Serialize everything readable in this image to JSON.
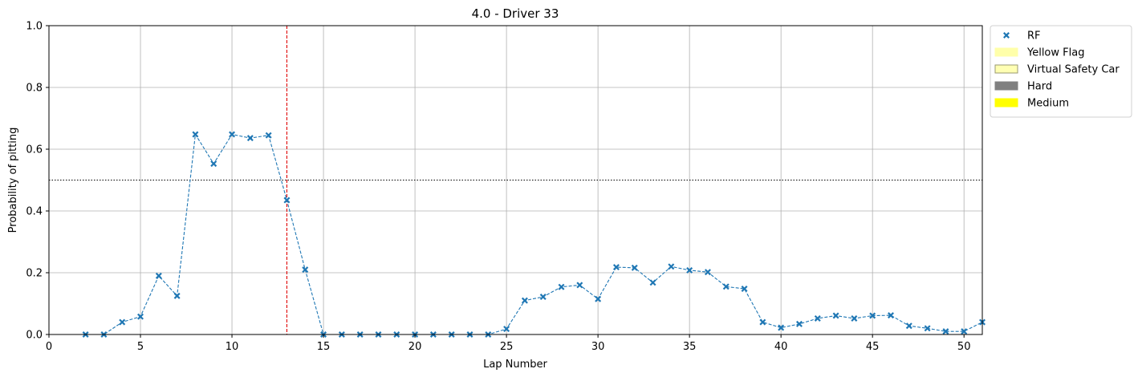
{
  "chart_data": {
    "type": "line",
    "title": "4.0 - Driver 33",
    "xlabel": "Lap Number",
    "ylabel": "Probability of pitting",
    "xlim": [
      0,
      51
    ],
    "ylim": [
      0,
      1
    ],
    "xticks": [
      0,
      5,
      10,
      15,
      20,
      25,
      30,
      35,
      40,
      45,
      50
    ],
    "yticks": [
      0.0,
      0.2,
      0.4,
      0.6,
      0.8,
      1.0
    ],
    "ytick_labels": [
      "0.0",
      "0.2",
      "0.4",
      "0.6",
      "0.8",
      "1.0"
    ],
    "grid": true,
    "threshold": 0.5,
    "pit_lap": 13,
    "legend_position": "outside-top-right",
    "series": [
      {
        "name": "RF",
        "color": "#1f77b4",
        "marker": "x",
        "linestyle": "dashed",
        "x": [
          2,
          3,
          4,
          5,
          6,
          7,
          8,
          9,
          10,
          11,
          12,
          13,
          14,
          15,
          16,
          17,
          18,
          19,
          20,
          21,
          22,
          23,
          24,
          25,
          26,
          27,
          28,
          29,
          30,
          31,
          32,
          33,
          34,
          35,
          36,
          37,
          38,
          39,
          40,
          41,
          42,
          43,
          44,
          45,
          46,
          47,
          48,
          49,
          50,
          51
        ],
        "y": [
          0.0,
          0.0,
          0.04,
          0.058,
          0.19,
          0.125,
          0.648,
          0.553,
          0.648,
          0.636,
          0.645,
          0.435,
          0.21,
          0.0,
          0.0,
          0.0,
          0.0,
          0.0,
          0.0,
          0.0,
          0.0,
          0.0,
          0.0,
          0.018,
          0.11,
          0.122,
          0.154,
          0.16,
          0.115,
          0.218,
          0.216,
          0.168,
          0.22,
          0.208,
          0.202,
          0.155,
          0.148,
          0.04,
          0.022,
          0.034,
          0.052,
          0.061,
          0.052,
          0.061,
          0.062,
          0.028,
          0.02,
          0.01,
          0.01,
          0.04
        ]
      }
    ],
    "legend": [
      {
        "label": "RF",
        "kind": "marker",
        "color": "#1f77b4"
      },
      {
        "label": "Yellow Flag",
        "kind": "patch",
        "color": "#ffffaa",
        "edge": "#ffffaa"
      },
      {
        "label": "Virtual Safety Car",
        "kind": "patch",
        "color": "#ffffb3",
        "edge": "#9a9a70"
      },
      {
        "label": "Hard",
        "kind": "patch",
        "color": "#808080",
        "edge": "#808080"
      },
      {
        "label": "Medium",
        "kind": "patch",
        "color": "#ffff00",
        "edge": "#ffff00"
      }
    ]
  }
}
